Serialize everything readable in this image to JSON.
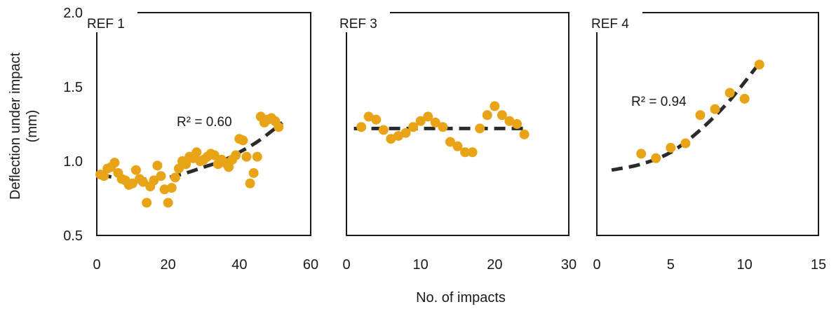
{
  "figure": {
    "ylabel": "Deflection under impact",
    "ylabel_unit": "(mm)",
    "xlabel": "No. of impacts",
    "colors": {
      "points": "#e8a317",
      "trend": "#2b2b2b",
      "frame": "#1a1a1a"
    }
  },
  "chart_data": [
    {
      "type": "scatter",
      "panel": "REF 1",
      "xlim": [
        0,
        60
      ],
      "xticks": [
        0,
        20,
        40,
        60
      ],
      "ylim": [
        0.5,
        2.0
      ],
      "yticks": [
        "0.5",
        "1.0",
        "1.5",
        "2.0"
      ],
      "r2": "R² = 0.60",
      "trend": {
        "type": "polynomial",
        "x": [
          1,
          5,
          10,
          15,
          20,
          25,
          30,
          35,
          40,
          45,
          50,
          52
        ],
        "y": [
          0.91,
          0.89,
          0.88,
          0.88,
          0.89,
          0.92,
          0.96,
          1.0,
          1.06,
          1.13,
          1.22,
          1.26
        ]
      },
      "points": [
        [
          1,
          0.91
        ],
        [
          2,
          0.9
        ],
        [
          3,
          0.95
        ],
        [
          4,
          0.96
        ],
        [
          5,
          0.99
        ],
        [
          6,
          0.92
        ],
        [
          7,
          0.88
        ],
        [
          8,
          0.87
        ],
        [
          9,
          0.84
        ],
        [
          10,
          0.85
        ],
        [
          11,
          0.94
        ],
        [
          12,
          0.88
        ],
        [
          13,
          0.86
        ],
        [
          14,
          0.72
        ],
        [
          15,
          0.83
        ],
        [
          16,
          0.87
        ],
        [
          17,
          0.97
        ],
        [
          18,
          0.9
        ],
        [
          19,
          0.81
        ],
        [
          20,
          0.72
        ],
        [
          21,
          0.82
        ],
        [
          22,
          0.89
        ],
        [
          23,
          0.95
        ],
        [
          24,
          1.0
        ],
        [
          25,
          0.98
        ],
        [
          26,
          1.03
        ],
        [
          27,
          1.02
        ],
        [
          28,
          1.06
        ],
        [
          29,
          1.0
        ],
        [
          30,
          1.01
        ],
        [
          31,
          1.03
        ],
        [
          32,
          1.05
        ],
        [
          33,
          1.04
        ],
        [
          34,
          0.98
        ],
        [
          35,
          1.01
        ],
        [
          36,
          0.99
        ],
        [
          37,
          0.96
        ],
        [
          38,
          1.01
        ],
        [
          39,
          1.04
        ],
        [
          40,
          1.15
        ],
        [
          41,
          1.14
        ],
        [
          42,
          1.03
        ],
        [
          43,
          0.85
        ],
        [
          44,
          0.92
        ],
        [
          45,
          1.03
        ],
        [
          46,
          1.3
        ],
        [
          47,
          1.26
        ],
        [
          48,
          1.28
        ],
        [
          49,
          1.29
        ],
        [
          50,
          1.27
        ],
        [
          51,
          1.23
        ]
      ]
    },
    {
      "type": "scatter",
      "panel": "REF 3",
      "xlim": [
        0,
        30
      ],
      "xticks": [
        0,
        10,
        20,
        30
      ],
      "ylim": [
        0.5,
        2.0
      ],
      "trend": {
        "type": "linear",
        "x": [
          1,
          24
        ],
        "y": [
          1.22,
          1.22
        ]
      },
      "points": [
        [
          2,
          1.23
        ],
        [
          3,
          1.3
        ],
        [
          4,
          1.28
        ],
        [
          5,
          1.21
        ],
        [
          6,
          1.15
        ],
        [
          7,
          1.17
        ],
        [
          8,
          1.19
        ],
        [
          9,
          1.23
        ],
        [
          10,
          1.27
        ],
        [
          11,
          1.3
        ],
        [
          12,
          1.26
        ],
        [
          13,
          1.23
        ],
        [
          14,
          1.13
        ],
        [
          15,
          1.1
        ],
        [
          16,
          1.06
        ],
        [
          17,
          1.06
        ],
        [
          18,
          1.22
        ],
        [
          19,
          1.31
        ],
        [
          20,
          1.37
        ],
        [
          21,
          1.31
        ],
        [
          22,
          1.27
        ],
        [
          23,
          1.25
        ],
        [
          24,
          1.18
        ]
      ]
    },
    {
      "type": "scatter",
      "panel": "REF 4",
      "xlim": [
        0,
        15
      ],
      "xticks": [
        0,
        5,
        10,
        15
      ],
      "ylim": [
        0.5,
        2.0
      ],
      "r2": "R² = 0.94",
      "trend": {
        "type": "polynomial",
        "x": [
          1,
          3,
          5,
          7,
          9,
          11
        ],
        "y": [
          0.94,
          0.98,
          1.06,
          1.21,
          1.41,
          1.66
        ]
      },
      "points": [
        [
          3,
          1.05
        ],
        [
          4,
          1.02
        ],
        [
          5,
          1.09
        ],
        [
          6,
          1.12
        ],
        [
          7,
          1.31
        ],
        [
          8,
          1.35
        ],
        [
          9,
          1.46
        ],
        [
          10,
          1.42
        ],
        [
          11,
          1.65
        ]
      ]
    }
  ]
}
